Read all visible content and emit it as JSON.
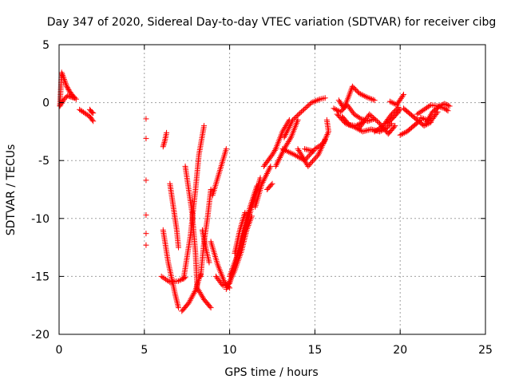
{
  "chart_data": {
    "type": "scatter",
    "title": "Day 347 of 2020, Sidereal Day-to-day VTEC variation (SDTVAR) for receiver cibg",
    "xlabel": "GPS time / hours",
    "ylabel": "SDTVAR / TECUs",
    "xlim": [
      0,
      25
    ],
    "ylim": [
      -20,
      5
    ],
    "xticks": [
      0,
      5,
      10,
      15,
      20,
      25
    ],
    "yticks": [
      5,
      0,
      -5,
      -10,
      -15,
      -20
    ],
    "grid": true,
    "marker": "plus",
    "color": "#ff0000",
    "series": [
      {
        "name": "arc1",
        "points": [
          [
            0.05,
            -0.2
          ],
          [
            0.15,
            2.6
          ],
          [
            0.3,
            2.0
          ],
          [
            0.45,
            1.4
          ],
          [
            0.6,
            1.0
          ],
          [
            0.8,
            0.6
          ],
          [
            1.0,
            0.3
          ]
        ]
      },
      {
        "name": "arc2",
        "points": [
          [
            0.05,
            -0.3
          ],
          [
            0.3,
            0.3
          ],
          [
            0.5,
            0.6
          ],
          [
            0.7,
            0.5
          ],
          [
            0.9,
            0.4
          ]
        ]
      },
      {
        "name": "arc3",
        "points": [
          [
            1.2,
            -0.6
          ],
          [
            1.5,
            -0.9
          ],
          [
            1.8,
            -1.2
          ],
          [
            2.0,
            -1.6
          ]
        ]
      },
      {
        "name": "arc4",
        "points": [
          [
            1.8,
            -0.6
          ],
          [
            1.9,
            -0.8
          ],
          [
            2.0,
            -0.9
          ]
        ]
      },
      {
        "name": "iso5",
        "points": [
          [
            5.1,
            -1.4
          ],
          [
            5.1,
            -3.1
          ],
          [
            5.1,
            -6.7
          ],
          [
            5.1,
            -9.7
          ],
          [
            5.1,
            -11.3
          ],
          [
            5.1,
            -12.3
          ]
        ]
      },
      {
        "name": "arc6",
        "points": [
          [
            6.1,
            -3.8
          ],
          [
            6.2,
            -3.3
          ],
          [
            6.3,
            -2.6
          ]
        ]
      },
      {
        "name": "arc7",
        "points": [
          [
            6.1,
            -11.0
          ],
          [
            6.4,
            -13.8
          ],
          [
            6.8,
            -16.5
          ],
          [
            7.0,
            -17.7
          ]
        ]
      },
      {
        "name": "arc8",
        "points": [
          [
            6.0,
            -15.0
          ],
          [
            6.5,
            -15.5
          ],
          [
            7.0,
            -15.4
          ],
          [
            7.4,
            -15.1
          ]
        ]
      },
      {
        "name": "arc9",
        "points": [
          [
            6.5,
            -7.0
          ],
          [
            6.7,
            -9.0
          ],
          [
            6.9,
            -11.0
          ],
          [
            7.0,
            -12.5
          ]
        ]
      },
      {
        "name": "arc10",
        "points": [
          [
            7.2,
            -18.0
          ],
          [
            7.6,
            -17.3
          ],
          [
            8.0,
            -16.2
          ],
          [
            8.3,
            -14.8
          ]
        ]
      },
      {
        "name": "arc11",
        "points": [
          [
            7.3,
            -15.2
          ],
          [
            7.7,
            -11.5
          ],
          [
            8.0,
            -7.5
          ],
          [
            8.2,
            -4.5
          ],
          [
            8.5,
            -2.0
          ]
        ]
      },
      {
        "name": "arc12",
        "points": [
          [
            7.4,
            -5.5
          ],
          [
            7.8,
            -9.5
          ],
          [
            8.0,
            -13.0
          ],
          [
            8.1,
            -16.0
          ]
        ]
      },
      {
        "name": "arc13",
        "points": [
          [
            8.4,
            -11.0
          ],
          [
            8.6,
            -12.5
          ],
          [
            8.8,
            -13.8
          ]
        ]
      },
      {
        "name": "arc14",
        "points": [
          [
            8.1,
            -16.0
          ],
          [
            8.5,
            -17.0
          ],
          [
            8.9,
            -17.7
          ]
        ]
      },
      {
        "name": "arc15",
        "points": [
          [
            8.3,
            -15.0
          ],
          [
            8.5,
            -12.0
          ],
          [
            8.7,
            -10.0
          ],
          [
            8.9,
            -7.5
          ]
        ]
      },
      {
        "name": "arc16",
        "points": [
          [
            9.0,
            -8.0
          ],
          [
            9.4,
            -6.0
          ],
          [
            9.8,
            -4.0
          ]
        ]
      },
      {
        "name": "arc17",
        "points": [
          [
            8.9,
            -12.0
          ],
          [
            9.3,
            -14.0
          ],
          [
            9.7,
            -15.5
          ],
          [
            10.0,
            -16.0
          ]
        ]
      },
      {
        "name": "arc18",
        "points": [
          [
            9.2,
            -15.0
          ],
          [
            9.6,
            -15.8
          ],
          [
            10.0,
            -15.6
          ],
          [
            10.4,
            -13.5
          ],
          [
            10.8,
            -11.0
          ],
          [
            11.2,
            -9.0
          ],
          [
            11.6,
            -7.2
          ]
        ]
      },
      {
        "name": "arc19",
        "points": [
          [
            9.8,
            -16.1
          ],
          [
            10.3,
            -14.5
          ],
          [
            10.7,
            -12.8
          ],
          [
            11.0,
            -11.0
          ],
          [
            11.3,
            -9.8
          ]
        ]
      },
      {
        "name": "arc20",
        "points": [
          [
            10.0,
            -15.0
          ],
          [
            10.5,
            -13.0
          ],
          [
            11.0,
            -10.5
          ],
          [
            11.4,
            -8.5
          ],
          [
            11.8,
            -6.5
          ]
        ]
      },
      {
        "name": "arc21",
        "points": [
          [
            10.3,
            -13.0
          ],
          [
            10.6,
            -11.0
          ],
          [
            10.9,
            -9.5
          ]
        ]
      },
      {
        "name": "arc22",
        "points": [
          [
            11.5,
            -9.0
          ],
          [
            11.9,
            -7.0
          ],
          [
            12.4,
            -5.5
          ]
        ]
      },
      {
        "name": "arc23",
        "points": [
          [
            12.2,
            -7.5
          ],
          [
            12.5,
            -7.0
          ]
        ]
      },
      {
        "name": "arc24",
        "points": [
          [
            12.0,
            -5.5
          ],
          [
            12.5,
            -4.5
          ],
          [
            12.7,
            -4.0
          ]
        ]
      },
      {
        "name": "arc25",
        "points": [
          [
            12.7,
            -5.5
          ],
          [
            13.2,
            -4.0
          ],
          [
            13.6,
            -3.0
          ],
          [
            14.0,
            -1.5
          ]
        ]
      },
      {
        "name": "arc26",
        "points": [
          [
            12.7,
            -4.0
          ],
          [
            13.1,
            -2.5
          ],
          [
            13.5,
            -1.5
          ]
        ]
      },
      {
        "name": "arc27",
        "points": [
          [
            13.2,
            -3.0
          ],
          [
            13.7,
            -1.5
          ],
          [
            14.2,
            -0.8
          ],
          [
            14.8,
            0.0
          ],
          [
            15.3,
            0.3
          ],
          [
            15.6,
            0.4
          ]
        ]
      },
      {
        "name": "arc28",
        "points": [
          [
            13.1,
            -4.0
          ],
          [
            13.8,
            -4.5
          ],
          [
            14.4,
            -5.0
          ],
          [
            15.0,
            -4.0
          ],
          [
            15.5,
            -3.5
          ],
          [
            15.8,
            -2.5
          ],
          [
            15.7,
            -1.5
          ]
        ]
      },
      {
        "name": "arc29",
        "points": [
          [
            14.0,
            -4.0
          ],
          [
            14.6,
            -5.5
          ],
          [
            15.2,
            -4.5
          ],
          [
            15.6,
            -3.2
          ]
        ]
      },
      {
        "name": "arc30",
        "points": [
          [
            14.4,
            -4.0
          ],
          [
            14.9,
            -4.2
          ]
        ]
      },
      {
        "name": "arc31",
        "points": [
          [
            16.1,
            -0.5
          ],
          [
            16.5,
            -0.8
          ],
          [
            16.9,
            -0.2
          ],
          [
            17.3,
            -1.0
          ],
          [
            17.7,
            -1.4
          ],
          [
            18.1,
            -1.6
          ],
          [
            18.5,
            -1.4
          ]
        ]
      },
      {
        "name": "arc32",
        "points": [
          [
            16.3,
            -1.0
          ],
          [
            16.8,
            -1.8
          ],
          [
            17.3,
            -2.1
          ],
          [
            17.8,
            -2.5
          ],
          [
            18.3,
            -2.3
          ],
          [
            18.8,
            -2.5
          ],
          [
            19.2,
            -2.2
          ],
          [
            19.5,
            -1.8
          ]
        ]
      },
      {
        "name": "arc33",
        "points": [
          [
            16.4,
            0.2
          ],
          [
            16.7,
            -0.5
          ],
          [
            17.0,
            0.6
          ],
          [
            17.2,
            1.4
          ],
          [
            17.6,
            0.8
          ],
          [
            18.0,
            0.5
          ],
          [
            18.5,
            0.2
          ]
        ]
      },
      {
        "name": "arc34",
        "points": [
          [
            16.6,
            -1.2
          ],
          [
            17.0,
            -1.9
          ],
          [
            17.4,
            -2.0
          ],
          [
            17.8,
            -1.7
          ]
        ]
      },
      {
        "name": "arc35",
        "points": [
          [
            17.6,
            -2.2
          ],
          [
            18.2,
            -1.0
          ],
          [
            18.8,
            -1.8
          ],
          [
            19.3,
            -2.7
          ],
          [
            19.7,
            -2.0
          ]
        ]
      },
      {
        "name": "arc36",
        "points": [
          [
            18.5,
            -2.5
          ],
          [
            19.0,
            -2.0
          ],
          [
            19.5,
            -1.0
          ],
          [
            19.9,
            -0.4
          ]
        ]
      },
      {
        "name": "arc37",
        "points": [
          [
            19.2,
            -1.8
          ],
          [
            19.6,
            -1.3
          ],
          [
            20.0,
            -0.6
          ]
        ]
      },
      {
        "name": "arc38",
        "points": [
          [
            19.4,
            0.1
          ],
          [
            19.8,
            -0.2
          ],
          [
            20.2,
            0.7
          ]
        ]
      },
      {
        "name": "arc39",
        "points": [
          [
            20.0,
            -2.8
          ],
          [
            20.4,
            -2.5
          ],
          [
            20.8,
            -2.0
          ],
          [
            21.2,
            -1.5
          ]
        ]
      },
      {
        "name": "arc40",
        "points": [
          [
            20.2,
            -0.5
          ],
          [
            20.6,
            -1.0
          ],
          [
            21.0,
            -1.5
          ],
          [
            21.4,
            -2.0
          ],
          [
            21.8,
            -1.7
          ]
        ]
      },
      {
        "name": "arc41",
        "points": [
          [
            21.0,
            -1.0
          ],
          [
            21.4,
            -0.6
          ],
          [
            21.8,
            -0.2
          ],
          [
            22.2,
            -0.3
          ],
          [
            22.6,
            -0.5
          ],
          [
            22.8,
            -0.7
          ]
        ]
      },
      {
        "name": "arc42",
        "points": [
          [
            21.5,
            -1.8
          ],
          [
            21.9,
            -0.8
          ],
          [
            22.3,
            -0.3
          ],
          [
            22.6,
            -0.1
          ],
          [
            22.9,
            -0.3
          ]
        ]
      },
      {
        "name": "arc43",
        "points": [
          [
            21.2,
            -1.3
          ],
          [
            21.8,
            -1.6
          ],
          [
            22.2,
            -0.8
          ]
        ]
      }
    ]
  }
}
